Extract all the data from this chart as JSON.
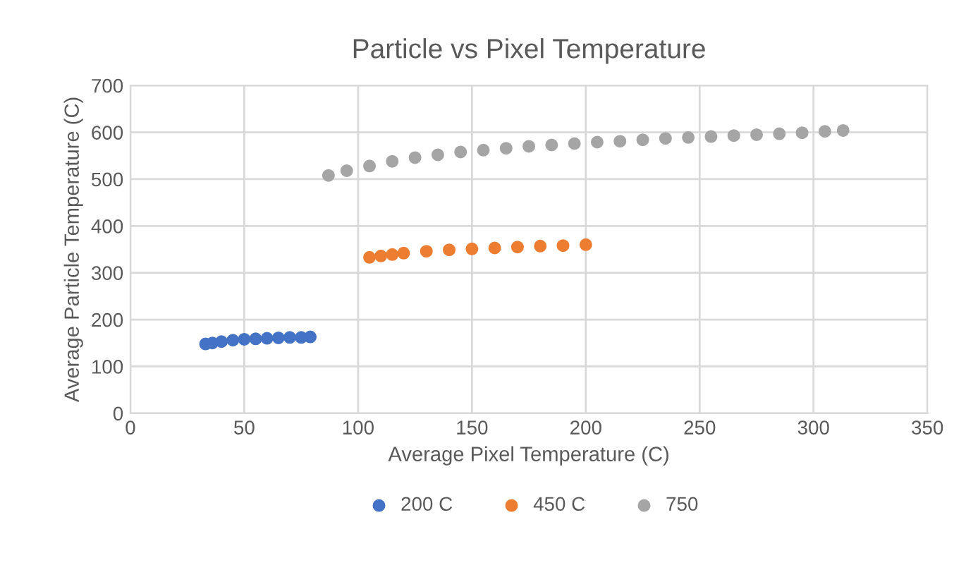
{
  "chart_data": {
    "type": "scatter",
    "title": "Particle vs Pixel Temperature",
    "xlabel": "Average Pixel Temperature (C)",
    "ylabel": "Average Particle Temperature (C)",
    "xlim": [
      0,
      350
    ],
    "xticks": [
      0,
      50,
      100,
      150,
      200,
      250,
      300,
      350
    ],
    "ylim": [
      0,
      700
    ],
    "yticks": [
      0,
      100,
      200,
      300,
      400,
      500,
      600,
      700
    ],
    "grid": true,
    "legend": "bottom",
    "marker": "circle",
    "series": [
      {
        "name": "200 C",
        "color": "#4472c4",
        "x": [
          33,
          36,
          40,
          45,
          50,
          55,
          60,
          65,
          70,
          75,
          79
        ],
        "values": [
          148,
          150,
          153,
          156,
          158,
          159,
          160,
          161,
          162,
          162,
          163
        ]
      },
      {
        "name": "450 C",
        "color": "#ed7d31",
        "x": [
          105,
          110,
          115,
          120,
          130,
          140,
          150,
          160,
          170,
          180,
          190,
          200
        ],
        "values": [
          333,
          336,
          339,
          342,
          346,
          349,
          351,
          353,
          355,
          357,
          358,
          360
        ]
      },
      {
        "name": "750",
        "color": "#a5a5a5",
        "x": [
          87,
          95,
          105,
          115,
          125,
          135,
          145,
          155,
          165,
          175,
          185,
          195,
          205,
          215,
          225,
          235,
          245,
          255,
          265,
          275,
          285,
          295,
          305,
          313
        ],
        "values": [
          508,
          518,
          528,
          538,
          546,
          552,
          558,
          562,
          566,
          570,
          573,
          576,
          579,
          581,
          584,
          587,
          589,
          591,
          593,
          595,
          597,
          599,
          602,
          604
        ]
      }
    ]
  }
}
